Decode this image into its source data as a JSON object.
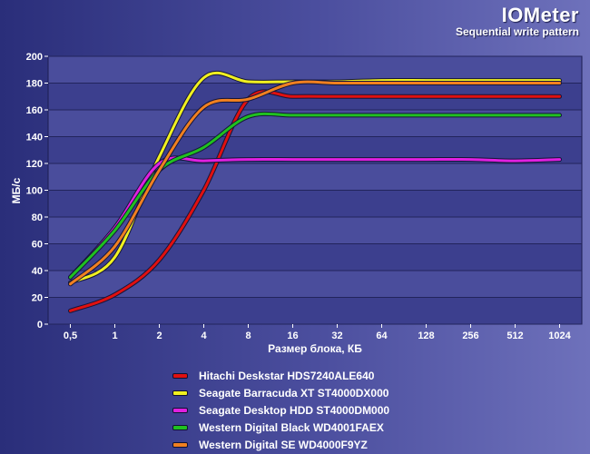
{
  "header": {
    "title": "IOMeter",
    "subtitle": "Sequential write pattern"
  },
  "chart_data": {
    "type": "line",
    "title": "IOMeter",
    "subtitle": "Sequential write pattern",
    "xlabel": "Размер блока, КБ",
    "ylabel": "МБ/с",
    "categories": [
      "0,5",
      "1",
      "2",
      "4",
      "8",
      "16",
      "32",
      "64",
      "128",
      "256",
      "512",
      "1024"
    ],
    "ylim": [
      0,
      200
    ],
    "yticks": [
      0,
      20,
      40,
      60,
      80,
      100,
      120,
      140,
      160,
      180,
      200
    ],
    "grid": true,
    "legend_position": "bottom",
    "series": [
      {
        "name": "Hitachi Deskstar HDS7240ALE640",
        "color": "#e01010",
        "values": [
          10,
          22,
          48,
          100,
          168,
          170,
          170,
          170,
          170,
          170,
          170,
          170
        ]
      },
      {
        "name": "Seagate Barracuda XT ST4000DX000",
        "color": "#f0f020",
        "values": [
          31,
          50,
          125,
          184,
          181,
          181,
          181,
          182,
          182,
          182,
          182,
          182
        ]
      },
      {
        "name": "Seagate Desktop HDD ST4000DM000",
        "color": "#e020e0",
        "values": [
          35,
          72,
          120,
          122,
          123,
          123,
          123,
          123,
          123,
          123,
          122,
          123
        ]
      },
      {
        "name": "Western Digital Black WD4001FAEX",
        "color": "#20c020",
        "values": [
          35,
          70,
          115,
          132,
          155,
          156,
          156,
          156,
          156,
          156,
          156,
          156
        ]
      },
      {
        "name": "Western Digital SE WD4000F9YZ",
        "color": "#f08020",
        "values": [
          30,
          58,
          115,
          162,
          168,
          180,
          180,
          180,
          180,
          180,
          180,
          180
        ]
      }
    ]
  }
}
